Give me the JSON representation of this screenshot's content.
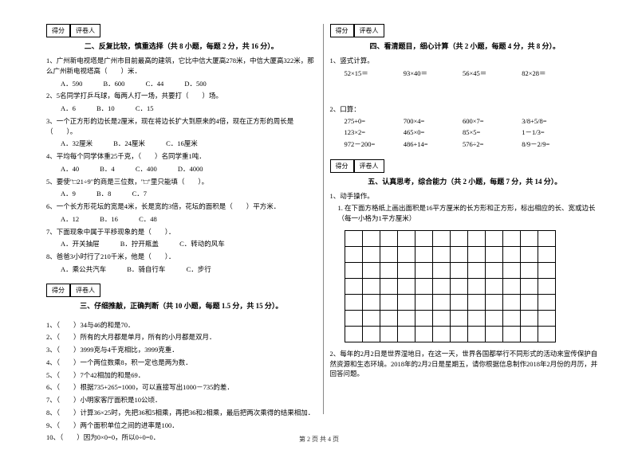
{
  "score_labels": {
    "score": "得分",
    "grader": "评卷人"
  },
  "footer": "第 2 页 共 4 页",
  "section2": {
    "title": "二、反复比较，慎重选择（共 8 小题，每题 2 分，共 16 分）。",
    "q1": "1、广州新电视塔是广州市目前最高的建筑，它比中信大厦高278米，中信大厦高322米，那么广州新电视塔高（　　）米．",
    "q1a": "A．590",
    "q1b": "B．600",
    "q1c": "C．44",
    "q1d": "D．500",
    "q2": "2、5名同学打乒乓球，每两人打一场，共要打（　　）场。",
    "q2a": "A．6",
    "q2b": "B．10",
    "q2c": "C．15",
    "q3": "3、一个正方形的边长是2厘米，现在将边长扩大到原来的4倍，现在正方形的周长是（　　）。",
    "q3a": "A．32厘米",
    "q3b": "B．24厘米",
    "q3c": "C．16厘米",
    "q4": "4、平均每个同学体重25千克，（　　）名同学重1吨．",
    "q4a": "A．40",
    "q4b": "B．4",
    "q4c": "C．400",
    "q4d": "D．4000",
    "q5": "5、要使\"□21÷9\"的商是三位数，\"□\"里只能填（　　）。",
    "q5a": "A．9",
    "q5b": "B．8",
    "q5c": "C．7",
    "q6": "6、一个长方形花坛的宽是4米，长是宽的3倍，花坛的面积是（　　）平方米．",
    "q6a": "A．12",
    "q6b": "B．16",
    "q6c": "C．48",
    "q7": "7、下面现象中属于平移现象的是（　　）．",
    "q7a": "A．开关抽屉",
    "q7b": "B．拧开瓶盖",
    "q7c": "C．转动的风车",
    "q8": "8、爸爸3小时行了210千米，他是（　　）．",
    "q8a": "A．乘公共汽车",
    "q8b": "B．骑自行车",
    "q8c": "C．步行"
  },
  "section3": {
    "title": "三、仔细推敲，正确判断（共 10 小题，每题 1.5 分，共 15 分）。",
    "q1": "1、（　　）34与46的和是70．",
    "q2": "2、（　　）所有的大月都是单月，所有的小月都是双月．",
    "q3": "3、（　　）3999克与4千克相比，3999克重．",
    "q4": "4、（　　）一个两位数乘8，积一定也是两为数．",
    "q5": "5、（　　）7个42相加的和是69．",
    "q6": "6、（　　）根据735+265=1000，可以直接写出1000－735的差．",
    "q7": "7、（　　）小明家客厅面积是10公顷．",
    "q8": "8、（　　）计算36×25时，先把36和5相乘，再把36和2相乘，最后把两次乘得的结果相加．",
    "q9": "9、（　　）两个面积单位之间的进率是100．",
    "q10": "10、（　　）因为0×0=0，所以0÷0=0．"
  },
  "section4": {
    "title": "四、看清题目，细心计算（共 2 小题，每题 4 分，共 8 分）。",
    "q1": "1、竖式计算。",
    "c1a": "52×15＝",
    "c1b": "93×40＝",
    "c1c": "56×45＝",
    "c1d": "82×28＝",
    "q2": "2、口算：",
    "r1a": "275+0=",
    "r1b": "700×4=",
    "r1c": "600×7=",
    "r1d": "3/8+5/8=",
    "r2a": "123×2=",
    "r2b": "465×0=",
    "r2c": "85×5=",
    "r2d": "1－1/3=",
    "r3a": "972－200=",
    "r3b": "486+14=",
    "r3c": "576÷2=",
    "r3d": "8/9－2/9="
  },
  "section5": {
    "title": "五、认真思考，综合能力（共 2 小题，每题 7 分，共 14 分）。",
    "q1": "1、动手操作。",
    "q1sub": "1. 在下面方格纸上画出面积是16平方厘米的长方形和正方形，标出相应的长、宽或边长（每一小格为1平方厘米）",
    "q2": "2、每年的2月2日是世界湿地日，在这一天，世界各国都举行不同形式的活动来宣传保护自然资源和生态环境。2018年的2月2日是星期五，请你根据信息制作2018年2月份的月历，并回答问题。",
    "grid_rows": 7,
    "grid_cols": 12
  },
  "colors": {
    "text": "#000000",
    "bg": "#ffffff",
    "divider": "#888888"
  }
}
